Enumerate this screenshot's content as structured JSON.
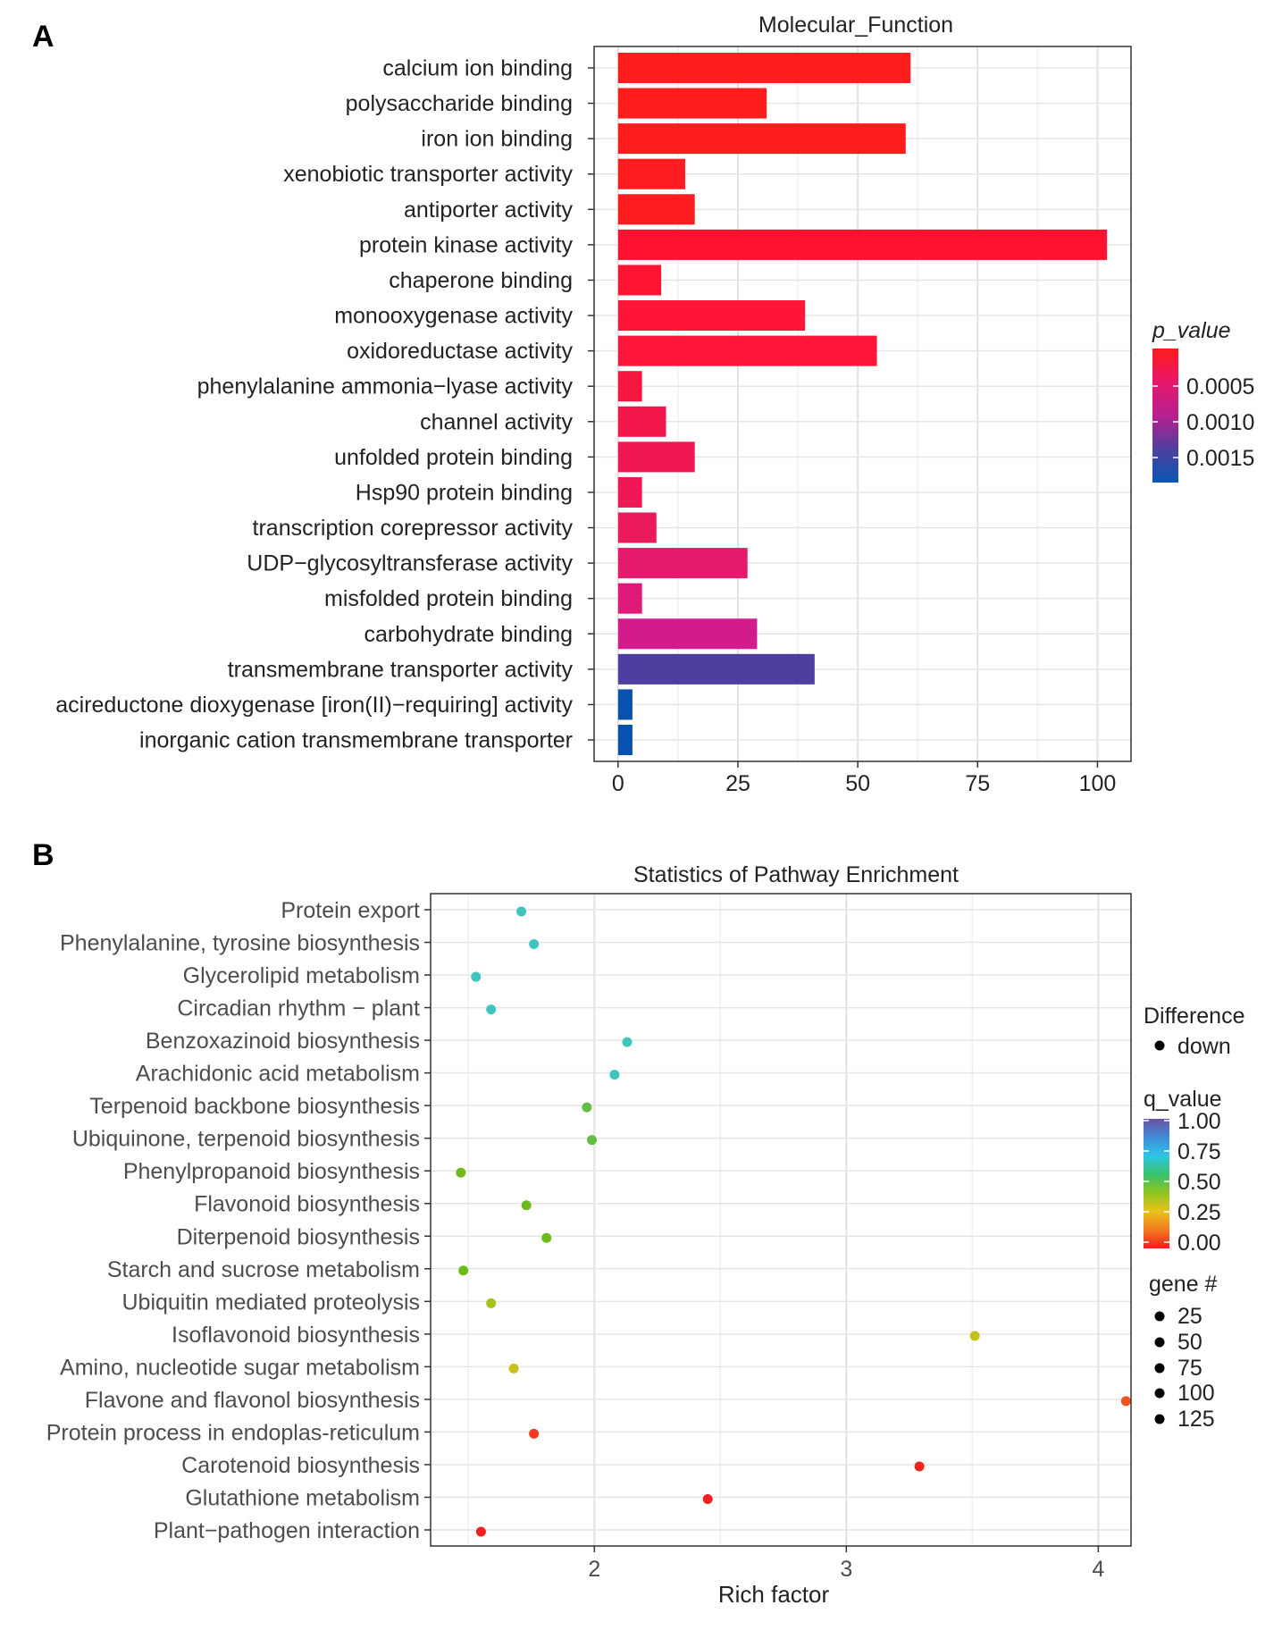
{
  "chart_data": [
    {
      "panel_label": "A",
      "type": "bar",
      "orientation": "horizontal",
      "title": "Molecular_Function",
      "xlabel": "",
      "ylabel": "",
      "xlim": [
        -5,
        107
      ],
      "xticks": [
        0,
        25,
        50,
        75,
        100
      ],
      "grid": true,
      "categories": [
        "calcium ion binding",
        "polysaccharide binding",
        "iron ion binding",
        "xenobiotic transporter activity",
        "antiporter activity",
        "protein kinase activity",
        "chaperone binding",
        "monooxygenase activity",
        "oxidoreductase activity",
        "phenylalanine ammonia−lyase activity",
        "channel activity",
        "unfolded protein binding",
        "Hsp90 protein binding",
        "transcription corepressor activity",
        "UDP−glycosyltransferase activity",
        "misfolded protein binding",
        "carbohydrate binding",
        "transmembrane transporter activity",
        "acireductone dioxygenase [iron(II)−requiring] activity",
        "inorganic cation transmembrane transporter"
      ],
      "values": [
        61,
        31,
        60,
        14,
        16,
        102,
        9,
        39,
        54,
        5,
        10,
        16,
        5,
        8,
        27,
        5,
        29,
        41,
        3,
        3
      ],
      "bar_colors": [
        "#FF1C1C",
        "#FF1C1C",
        "#FF1C1C",
        "#FF1C1E",
        "#FF1C1E",
        "#FF1231",
        "#FF1533",
        "#FF1537",
        "#FF1639",
        "#F5173F",
        "#F2164B",
        "#F01752",
        "#EE1856",
        "#EB1A5B",
        "#E51A6C",
        "#DF1A7A",
        "#D21C8C",
        "#4C3FA0",
        "#0A50AE",
        "#0A50AE"
      ],
      "legend": {
        "title": "p_value",
        "ticks": [
          "0.0005",
          "0.0010",
          "0.0015"
        ],
        "colors": [
          "#FF1C1C",
          "#E8176A",
          "#B7208E",
          "#4F3F9E",
          "#0A57B4"
        ],
        "position": "right"
      }
    },
    {
      "panel_label": "B",
      "type": "scatter",
      "title": "Statistics of Pathway Enrichment",
      "xlabel": "Rich factor",
      "ylabel": "",
      "xlim": [
        1.35,
        4.13
      ],
      "xticks": [
        2,
        3,
        4
      ],
      "grid": true,
      "categories": [
        "Protein export",
        "Phenylalanine, tyrosine biosynthesis",
        "Glycerolipid metabolism",
        "Circadian rhythm − plant",
        "Benzoxazinoid biosynthesis",
        "Arachidonic acid metabolism",
        "Terpenoid backbone biosynthesis",
        "Ubiquinone, terpenoid biosynthesis",
        "Phenylpropanoid biosynthesis",
        "Flavonoid biosynthesis",
        "Diterpenoid biosynthesis",
        "Starch and sucrose metabolism",
        "Ubiquitin mediated proteolysis",
        "Isoflavonoid biosynthesis",
        "Amino, nucleotide sugar metabolism",
        "Flavone and flavonol biosynthesis",
        "Protein process in endoplas-reticulum",
        "Carotenoid biosynthesis",
        "Glutathione metabolism",
        "Plant−pathogen interaction"
      ],
      "x": [
        1.71,
        1.76,
        1.53,
        1.59,
        2.13,
        2.08,
        1.97,
        1.99,
        1.47,
        1.73,
        1.81,
        1.48,
        1.59,
        3.51,
        1.68,
        4.11,
        1.76,
        3.29,
        2.45,
        1.55
      ],
      "point_colors": [
        "#3EC6BE",
        "#3EC6BE",
        "#3EC6BE",
        "#3EC6BE",
        "#3EC6BE",
        "#3EC6BE",
        "#62BF46",
        "#62BF46",
        "#6CBA1C",
        "#6CBA1C",
        "#6CBA1C",
        "#6CBA1C",
        "#A4C21A",
        "#C6C01C",
        "#C6C01C",
        "#F25220",
        "#F23A1E",
        "#F2241E",
        "#F2201E",
        "#F2201E"
      ],
      "legend_difference": {
        "title": "Difference",
        "items": [
          "down"
        ]
      },
      "legend_q_value": {
        "title": "q_value",
        "ticks": [
          "1.00",
          "0.75",
          "0.50",
          "0.25",
          "0.00"
        ],
        "colors": [
          "#6A52A3",
          "#3F8BD8",
          "#2EC6E6",
          "#36C36A",
          "#8FC41E",
          "#E8C21A",
          "#F37A1E",
          "#F01E1E"
        ]
      },
      "legend_gene_count": {
        "title": "gene #",
        "items": [
          "25",
          "50",
          "75",
          "100",
          "125"
        ]
      }
    }
  ]
}
